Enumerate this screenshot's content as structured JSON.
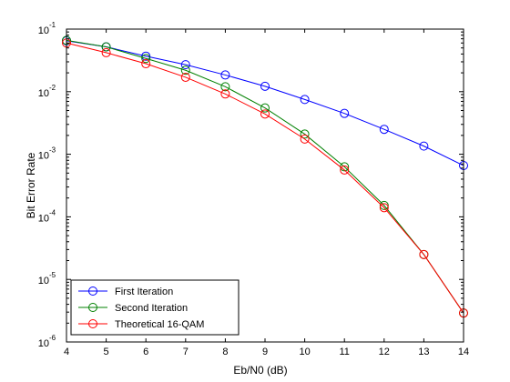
{
  "chart_data": {
    "type": "line",
    "xlabel": "Eb/N0 (dB)",
    "ylabel": "Bit Error Rate",
    "x": [
      4,
      5,
      6,
      7,
      8,
      9,
      10,
      11,
      12,
      13,
      14
    ],
    "xlim": [
      4,
      14
    ],
    "ylim": [
      1e-06,
      0.1
    ],
    "yscale": "log",
    "x_tick_labels": [
      "4",
      "5",
      "6",
      "7",
      "8",
      "9",
      "10",
      "11",
      "12",
      "13",
      "14"
    ],
    "y_ticks": [
      {
        "value": 0.1,
        "exp": "-1"
      },
      {
        "value": 0.01,
        "exp": "-2"
      },
      {
        "value": 0.001,
        "exp": "-3"
      },
      {
        "value": 0.0001,
        "exp": "-4"
      },
      {
        "value": 1e-05,
        "exp": "-5"
      },
      {
        "value": 1e-06,
        "exp": "-6"
      }
    ],
    "grid": false,
    "legend_position": "bottom-left",
    "marker": "circle",
    "series": [
      {
        "name": "First Iteration",
        "color": "#0000ff",
        "values": [
          0.065,
          0.052,
          0.037,
          0.027,
          0.0185,
          0.0122,
          0.0075,
          0.0045,
          0.0025,
          0.00135,
          0.00066
        ]
      },
      {
        "name": "Second Iteration",
        "color": "#008000",
        "values": [
          0.066,
          0.052,
          0.034,
          0.022,
          0.012,
          0.0055,
          0.0021,
          0.00063,
          0.000152,
          2.5e-05,
          2.9e-06
        ]
      },
      {
        "name": "Theoretical 16-QAM",
        "color": "#ff0000",
        "values": [
          0.06,
          0.042,
          0.028,
          0.017,
          0.0092,
          0.0044,
          0.00175,
          0.00056,
          0.00014,
          2.5e-05,
          2.9e-06
        ]
      }
    ]
  }
}
